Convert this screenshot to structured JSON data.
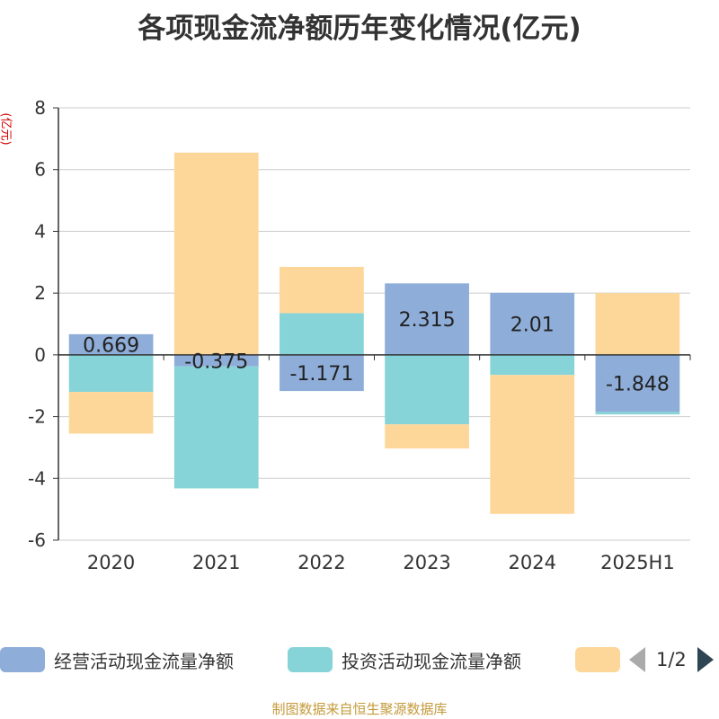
{
  "title": "各项现金流净额历年变化情况(亿元)",
  "y_unit": "(亿元)",
  "source": "制图数据来自恒生聚源数据库",
  "legend": {
    "items": [
      {
        "label": "经营活动现金流量净额",
        "color": "#8eadd8"
      },
      {
        "label": "投资活动现金流量净额",
        "color": "#86d4d8"
      },
      {
        "label": "",
        "color": "#fdd79a"
      }
    ],
    "page": "1/2"
  },
  "chart_data": {
    "type": "bar",
    "stacked": true,
    "categories": [
      "2020",
      "2021",
      "2022",
      "2023",
      "2024",
      "2025H1"
    ],
    "series": [
      {
        "name": "经营活动现金流量净额",
        "color": "#8eadd8",
        "values": [
          0.669,
          -0.375,
          -1.171,
          2.315,
          2.01,
          -1.848
        ]
      },
      {
        "name": "投资活动现金流量净额",
        "color": "#86d4d8",
        "values": [
          -1.2,
          -3.95,
          1.35,
          -2.25,
          -0.65,
          -0.08
        ]
      },
      {
        "name": "",
        "color": "#fdd79a",
        "values": [
          -1.35,
          6.55,
          1.5,
          -0.78,
          -4.5,
          2.0
        ]
      }
    ],
    "data_labels": [
      "0.669",
      "-0.375",
      "-1.171",
      "2.315",
      "2.01",
      "-1.848"
    ],
    "ylim": [
      -6,
      8
    ],
    "yticks": [
      -6,
      -4,
      -2,
      0,
      2,
      4,
      6,
      8
    ],
    "grid": true
  }
}
